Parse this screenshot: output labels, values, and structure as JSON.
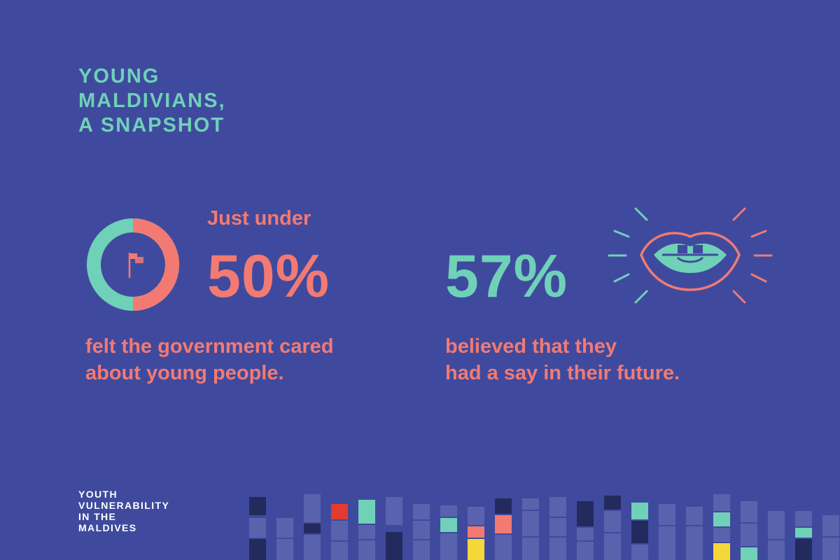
{
  "title": {
    "lines": [
      "YOUNG",
      "MALDIVIANS,",
      "A SNAPSHOT"
    ]
  },
  "stat_left": {
    "lead": "Just under",
    "value": "50%",
    "share": 0.5,
    "description": [
      "felt the government cared",
      "about young people."
    ],
    "icon": "flag-icon"
  },
  "stat_right": {
    "value": "57%",
    "description": [
      "believed that they",
      "had a say in their future."
    ],
    "icon": "mouth-icon"
  },
  "footer": {
    "lines": [
      "YOUTH",
      "VULNERABILITY",
      "IN THE",
      "MALDIVES"
    ]
  },
  "colors": {
    "background": "#3f4a9e",
    "teal": "#6fd1b8",
    "coral": "#f27a73",
    "navy": "#232a5e",
    "bar": "#5963ad",
    "red": "#e23b2f",
    "yellow": "#f5d73a"
  }
}
